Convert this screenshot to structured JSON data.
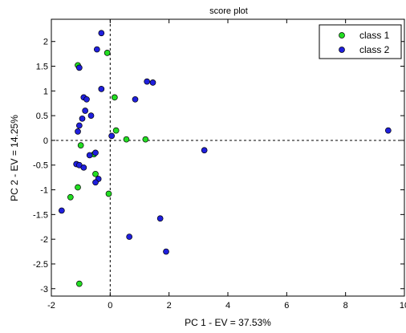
{
  "chart_data": {
    "type": "scatter",
    "title": "score plot",
    "xlabel": "PC 1 - EV = 37.53%",
    "ylabel": "PC 2 - EV = 14.25%",
    "xlim": [
      -2,
      10
    ],
    "ylim": [
      -3.15,
      2.45
    ],
    "xticks": [
      -2,
      0,
      2,
      4,
      6,
      8,
      10
    ],
    "xtick_labels": [
      "-2",
      "0",
      "2",
      "4",
      "6",
      "8",
      "10"
    ],
    "yticks": [
      -3,
      -2.5,
      -2,
      -1.5,
      -1,
      -0.5,
      0,
      0.5,
      1,
      1.5,
      2
    ],
    "ytick_labels": [
      "-3",
      "-2.5",
      "-2",
      "-1.5",
      "-1",
      "-0.5",
      "0",
      "0.5",
      "1",
      "1.5",
      "2"
    ],
    "reference_lines": {
      "x": 0,
      "y": 0,
      "style": "dashed"
    },
    "legend_position": "top-right",
    "series": [
      {
        "name": "class 1",
        "color": "#22dd22",
        "points": [
          {
            "x": -1.1,
            "y": 1.52
          },
          {
            "x": -0.1,
            "y": 1.77
          },
          {
            "x": 0.15,
            "y": 0.87
          },
          {
            "x": 0.2,
            "y": 0.2
          },
          {
            "x": 0.55,
            "y": 0.02
          },
          {
            "x": 1.2,
            "y": 0.02
          },
          {
            "x": -1.0,
            "y": -0.1
          },
          {
            "x": -0.55,
            "y": -0.28
          },
          {
            "x": -0.5,
            "y": -0.68
          },
          {
            "x": -1.1,
            "y": -0.95
          },
          {
            "x": -1.35,
            "y": -1.15
          },
          {
            "x": -0.05,
            "y": -1.08
          },
          {
            "x": -1.05,
            "y": -2.9
          }
        ]
      },
      {
        "name": "class 2",
        "color": "#1f1fdd",
        "points": [
          {
            "x": -0.3,
            "y": 2.17
          },
          {
            "x": -0.45,
            "y": 1.84
          },
          {
            "x": -1.05,
            "y": 1.47
          },
          {
            "x": -0.3,
            "y": 1.04
          },
          {
            "x": 1.25,
            "y": 1.19
          },
          {
            "x": 1.45,
            "y": 1.17
          },
          {
            "x": 0.85,
            "y": 0.83
          },
          {
            "x": -0.9,
            "y": 0.87
          },
          {
            "x": -0.8,
            "y": 0.83
          },
          {
            "x": -0.85,
            "y": 0.6
          },
          {
            "x": -0.65,
            "y": 0.5
          },
          {
            "x": -0.95,
            "y": 0.44
          },
          {
            "x": -1.05,
            "y": 0.3
          },
          {
            "x": -1.1,
            "y": 0.18
          },
          {
            "x": 0.05,
            "y": 0.09
          },
          {
            "x": 9.45,
            "y": 0.2
          },
          {
            "x": 3.2,
            "y": -0.2
          },
          {
            "x": -0.7,
            "y": -0.3
          },
          {
            "x": -0.5,
            "y": -0.25
          },
          {
            "x": -1.15,
            "y": -0.48
          },
          {
            "x": -1.05,
            "y": -0.5
          },
          {
            "x": -0.9,
            "y": -0.55
          },
          {
            "x": -0.4,
            "y": -0.78
          },
          {
            "x": -0.5,
            "y": -0.85
          },
          {
            "x": -1.65,
            "y": -1.42
          },
          {
            "x": 1.7,
            "y": -1.58
          },
          {
            "x": 0.65,
            "y": -1.95
          },
          {
            "x": 1.9,
            "y": -2.25
          }
        ]
      }
    ]
  }
}
